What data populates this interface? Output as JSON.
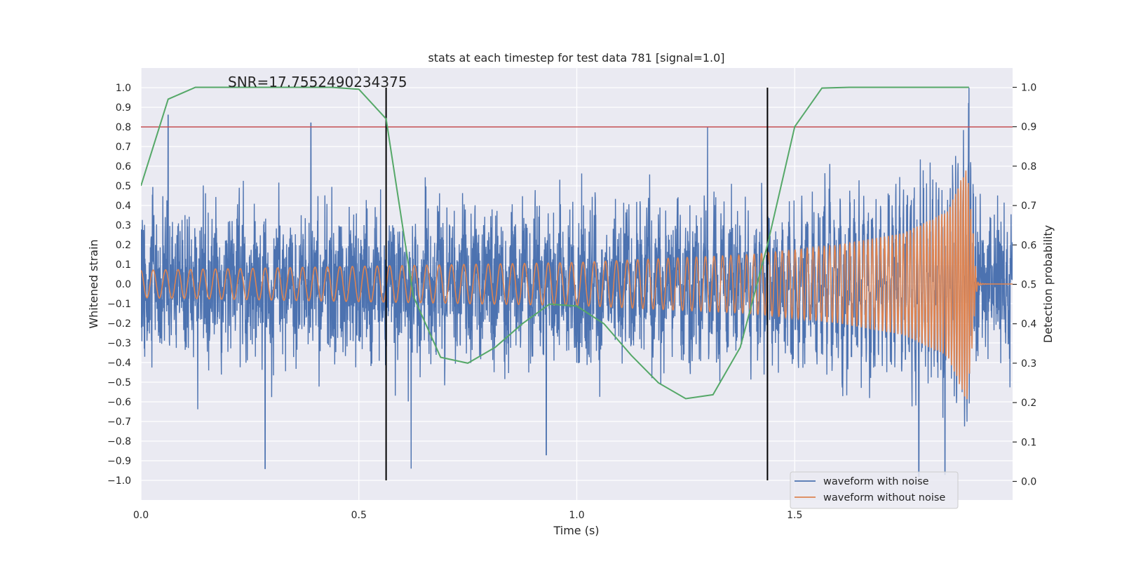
{
  "chart_data": {
    "type": "line",
    "title": "stats at each timestep for test data 781 [signal=1.0]",
    "xlabel": "Time (s)",
    "ylabel": "Whitened strain",
    "y2label": "Detection probability",
    "xlim": [
      0,
      2.0
    ],
    "ylim": [
      -1.1,
      1.1
    ],
    "y2lim": [
      -0.05,
      1.05
    ],
    "x_ticks": [
      "0.0",
      "0.5",
      "1.0",
      "1.5"
    ],
    "y_ticks": [
      "1.0",
      "0.9",
      "0.8",
      "0.7",
      "0.6",
      "0.5",
      "0.4",
      "0.3",
      "0.2",
      "0.1",
      "0.0",
      "−0.1",
      "−0.2",
      "−0.3",
      "−0.4",
      "−0.5",
      "−0.6",
      "−0.7",
      "−0.8",
      "−0.9",
      "−1.0"
    ],
    "y2_ticks": [
      "1.0",
      "0.9",
      "0.8",
      "0.7",
      "0.6",
      "0.5",
      "0.4",
      "0.3",
      "0.2",
      "0.1",
      "0.0"
    ],
    "grid": true,
    "legend_position": "lower-right",
    "annotation": "SNR=17.7552490234375",
    "threshold_line": {
      "y": 0.8,
      "color": "#c44e52"
    },
    "vertical_markers": {
      "x": [
        0.5625,
        1.4375
      ],
      "y_range": [
        -1.0,
        1.0
      ],
      "color": "#000000"
    },
    "series": [
      {
        "name": "waveform with noise",
        "color": "#4c72b0",
        "axis": "left",
        "description_values": {
          "amplitude_rms": 0.25,
          "peaks": [
            {
              "x": 0.0625,
              "y": 0.86
            },
            {
              "x": 0.285,
              "y": -0.94
            },
            {
              "x": 0.39,
              "y": 0.82
            },
            {
              "x": 0.62,
              "y": -0.94
            },
            {
              "x": 0.93,
              "y": -0.87
            },
            {
              "x": 1.3,
              "y": 0.8
            },
            {
              "x": 1.785,
              "y": -0.98
            },
            {
              "x": 1.845,
              "y": -0.97
            },
            {
              "x": 1.9,
              "y": 1.0
            }
          ]
        }
      },
      {
        "name": "waveform without noise",
        "color": "#dd8452",
        "axis": "left",
        "description_values": {
          "envelope": [
            {
              "x": 0.0,
              "y": 0.07
            },
            {
              "x": 0.5,
              "y": 0.09
            },
            {
              "x": 1.0,
              "y": 0.11
            },
            {
              "x": 1.4,
              "y": 0.15
            },
            {
              "x": 1.6,
              "y": 0.2
            },
            {
              "x": 1.75,
              "y": 0.26
            },
            {
              "x": 1.85,
              "y": 0.37
            },
            {
              "x": 1.895,
              "y": 0.6
            },
            {
              "x": 1.92,
              "y": 0.02
            },
            {
              "x": 1.95,
              "y": 0.0
            }
          ],
          "frequency_start_hz": 35,
          "frequency_end_hz": 180
        }
      },
      {
        "name": "detection probability",
        "color": "#55a868",
        "axis": "right",
        "x": [
          0.0,
          0.0625,
          0.125,
          0.1875,
          0.25,
          0.3125,
          0.375,
          0.4375,
          0.5,
          0.5625,
          0.625,
          0.6875,
          0.75,
          0.8125,
          0.875,
          0.9375,
          1.0,
          1.0625,
          1.125,
          1.1875,
          1.25,
          1.3125,
          1.375,
          1.4375,
          1.5,
          1.5625,
          1.625,
          1.6875,
          1.75,
          1.8125,
          1.875,
          1.9
        ],
        "y": [
          0.75,
          0.97,
          1.0,
          1.0,
          1.0,
          1.0,
          1.0,
          1.0,
          0.995,
          0.92,
          0.47,
          0.315,
          0.3,
          0.34,
          0.4,
          0.45,
          0.445,
          0.4,
          0.32,
          0.25,
          0.21,
          0.22,
          0.34,
          0.6,
          0.9,
          0.998,
          1.0,
          1.0,
          1.0,
          1.0,
          1.0,
          1.0
        ]
      }
    ]
  }
}
